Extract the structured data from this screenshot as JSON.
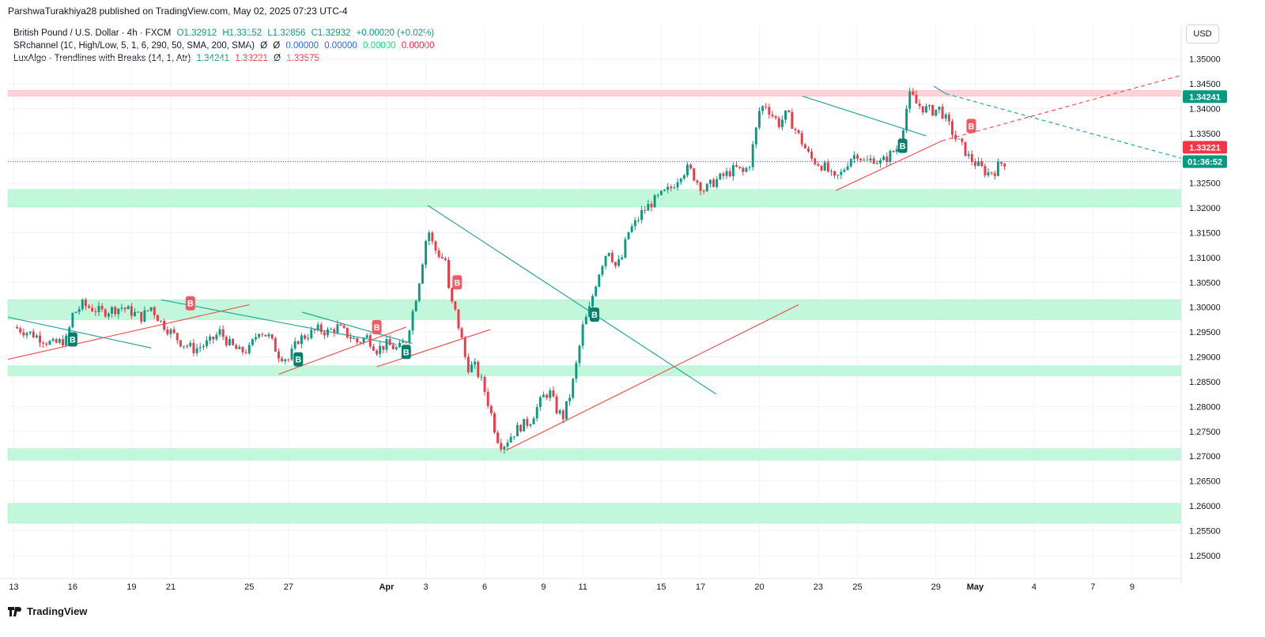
{
  "header": {
    "publisher_line": "ParshwaTurakhiya28 published on TradingView.com, May 02, 2025 07:23 UTC-4"
  },
  "legend": {
    "row1": {
      "name": "British Pound / U.S. Dollar · 4h · FXCM",
      "o": "O1.32912",
      "h": "H1.33152",
      "l": "L1.32856",
      "c": "C1.32932",
      "chg": "+0.00020 (+0.02%)"
    },
    "row2": {
      "name": "SRchannel (10, High/Low, 5, 1, 6, 290, 50, SMA, 200, SMA)",
      "s1": "Ø",
      "s2": "Ø",
      "v1": "0.00000",
      "v2": "0.00000",
      "v3": "0.00000",
      "v4": "0.00000"
    },
    "row3": {
      "name": "LuxAlgo - Trendlines with Breaks (14, 1, Atr)",
      "v1": "1.34241",
      "v2": "1.33221",
      "s1": "Ø",
      "v3": "1.33575"
    }
  },
  "currency_button": "USD",
  "price_tags": {
    "upper": "1.34241",
    "lower": "1.33221",
    "countdown": "01:36:52"
  },
  "footer": {
    "brand": "TradingView"
  },
  "colors": {
    "up": "#089981",
    "down": "#f23645",
    "zone_green": "#b9f6d6",
    "zone_red": "#ffcdd2",
    "trend_green": "#26a69a",
    "trend_red": "#ef5350"
  },
  "chart_data": {
    "type": "candlestick",
    "symbol": "GBPUSD",
    "timeframe": "4h",
    "y_ticks": [
      "1.25000",
      "1.25500",
      "1.26000",
      "1.26500",
      "1.27000",
      "1.27500",
      "1.28000",
      "1.28500",
      "1.29000",
      "1.29500",
      "1.30000",
      "1.30500",
      "1.31000",
      "1.31500",
      "1.32000",
      "1.32500",
      "1.33000",
      "1.33500",
      "1.34000",
      "1.34500",
      "1.35000"
    ],
    "ylim": [
      1.246,
      1.352
    ],
    "x_ticks": [
      "13",
      "16",
      "19",
      "21",
      "25",
      "27",
      "Apr",
      "3",
      "6",
      "9",
      "11",
      "15",
      "17",
      "20",
      "23",
      "25",
      "29",
      "May",
      "4",
      "7",
      "9"
    ],
    "x_tick_days": [
      -19,
      -16,
      -13,
      -11,
      -7,
      -5,
      0,
      2,
      5,
      8,
      10,
      14,
      16,
      19,
      22,
      24,
      28,
      30,
      33,
      36,
      38
    ],
    "xlim_days": [
      -19.3,
      40.5
    ],
    "zones": [
      {
        "low": 1.3425,
        "high": 1.3437,
        "kind": "resistance"
      },
      {
        "low": 1.3202,
        "high": 1.3237,
        "kind": "support"
      },
      {
        "low": 1.2975,
        "high": 1.3015,
        "kind": "support"
      },
      {
        "low": 1.2862,
        "high": 1.2882,
        "kind": "support"
      },
      {
        "low": 1.2692,
        "high": 1.2715,
        "kind": "support"
      },
      {
        "low": 1.2565,
        "high": 1.2605,
        "kind": "support"
      }
    ],
    "close_path": [
      [
        -19.0,
        1.296
      ],
      [
        -18.0,
        1.2945
      ],
      [
        -17.0,
        1.2925
      ],
      [
        -16.3,
        1.2935
      ],
      [
        -16.0,
        1.2985
      ],
      [
        -15.5,
        1.3005
      ],
      [
        -14.5,
        1.299
      ],
      [
        -13.5,
        1.3
      ],
      [
        -12.5,
        1.298
      ],
      [
        -12.0,
        1.3
      ],
      [
        -11.5,
        1.297
      ],
      [
        -11.0,
        1.295
      ],
      [
        -10.5,
        1.293
      ],
      [
        -9.8,
        1.2915
      ],
      [
        -9.0,
        1.293
      ],
      [
        -8.5,
        1.295
      ],
      [
        -8.0,
        1.2925
      ],
      [
        -7.5,
        1.291
      ],
      [
        -7.0,
        1.2915
      ],
      [
        -6.5,
        1.2955
      ],
      [
        -6.0,
        1.294
      ],
      [
        -5.5,
        1.2905
      ],
      [
        -5.0,
        1.2895
      ],
      [
        -4.5,
        1.2935
      ],
      [
        -4.0,
        1.2945
      ],
      [
        -3.5,
        1.2955
      ],
      [
        -3.0,
        1.295
      ],
      [
        -2.5,
        1.296
      ],
      [
        -2.0,
        1.2945
      ],
      [
        -1.5,
        1.293
      ],
      [
        -1.0,
        1.294
      ],
      [
        -0.5,
        1.2915
      ],
      [
        0.0,
        1.2925
      ],
      [
        0.6,
        1.2915
      ],
      [
        1.0,
        1.2935
      ],
      [
        1.3,
        1.2985
      ],
      [
        1.6,
        1.304
      ],
      [
        1.9,
        1.311
      ],
      [
        2.1,
        1.316
      ],
      [
        2.4,
        1.312
      ],
      [
        2.8,
        1.31
      ],
      [
        3.0,
        1.3095
      ],
      [
        3.2,
        1.302
      ],
      [
        3.5,
        1.299
      ],
      [
        3.8,
        1.294
      ],
      [
        4.1,
        1.288
      ],
      [
        4.5,
        1.288
      ],
      [
        4.9,
        1.2845
      ],
      [
        5.3,
        1.279
      ],
      [
        5.6,
        1.274
      ],
      [
        5.9,
        1.272
      ],
      [
        6.3,
        1.274
      ],
      [
        6.8,
        1.276
      ],
      [
        7.3,
        1.277
      ],
      [
        7.7,
        1.28
      ],
      [
        8.0,
        1.282
      ],
      [
        8.3,
        1.283
      ],
      [
        8.7,
        1.279
      ],
      [
        9.0,
        1.278
      ],
      [
        9.4,
        1.283
      ],
      [
        9.7,
        1.289
      ],
      [
        10.0,
        1.296
      ],
      [
        10.3,
        1.299
      ],
      [
        10.6,
        1.304
      ],
      [
        10.9,
        1.308
      ],
      [
        11.3,
        1.312
      ],
      [
        11.7,
        1.308
      ],
      [
        12.0,
        1.31
      ],
      [
        12.3,
        1.315
      ],
      [
        12.7,
        1.317
      ],
      [
        13.0,
        1.319
      ],
      [
        13.5,
        1.321
      ],
      [
        14.0,
        1.3225
      ],
      [
        14.5,
        1.324
      ],
      [
        15.0,
        1.327
      ],
      [
        15.4,
        1.328
      ],
      [
        15.8,
        1.3255
      ],
      [
        16.2,
        1.3235
      ],
      [
        16.6,
        1.325
      ],
      [
        17.0,
        1.326
      ],
      [
        17.4,
        1.327
      ],
      [
        17.8,
        1.328
      ],
      [
        18.2,
        1.327
      ],
      [
        18.5,
        1.329
      ],
      [
        18.8,
        1.335
      ],
      [
        19.0,
        1.3395
      ],
      [
        19.3,
        1.341
      ],
      [
        19.6,
        1.339
      ],
      [
        20.0,
        1.337
      ],
      [
        20.4,
        1.339
      ],
      [
        20.8,
        1.336
      ],
      [
        21.2,
        1.333
      ],
      [
        21.6,
        1.33
      ],
      [
        22.0,
        1.329
      ],
      [
        22.4,
        1.328
      ],
      [
        22.8,
        1.3255
      ],
      [
        23.2,
        1.327
      ],
      [
        23.6,
        1.33
      ],
      [
        24.0,
        1.331
      ],
      [
        24.4,
        1.329
      ],
      [
        24.8,
        1.33
      ],
      [
        25.2,
        1.329
      ],
      [
        25.6,
        1.3305
      ],
      [
        26.0,
        1.332
      ],
      [
        26.3,
        1.336
      ],
      [
        26.5,
        1.34
      ],
      [
        26.7,
        1.343
      ],
      [
        27.0,
        1.341
      ],
      [
        27.4,
        1.34
      ],
      [
        27.8,
        1.3395
      ],
      [
        28.2,
        1.34
      ],
      [
        28.6,
        1.337
      ],
      [
        29.0,
        1.334
      ],
      [
        29.4,
        1.332
      ],
      [
        29.7,
        1.33
      ],
      [
        30.0,
        1.329
      ],
      [
        30.3,
        1.328
      ],
      [
        30.6,
        1.327
      ],
      [
        31.0,
        1.3275
      ],
      [
        31.3,
        1.329
      ],
      [
        31.6,
        1.3293
      ]
    ],
    "signals": [
      {
        "day": -16.0,
        "price": 1.2935,
        "type": "buy",
        "label": "B"
      },
      {
        "day": -10.0,
        "price": 1.3008,
        "type": "sell",
        "label": "B"
      },
      {
        "day": -4.5,
        "price": 1.2895,
        "type": "buy",
        "label": "B"
      },
      {
        "day": -0.5,
        "price": 1.296,
        "type": "sell",
        "label": "B"
      },
      {
        "day": 1.0,
        "price": 1.291,
        "type": "buy",
        "label": "B"
      },
      {
        "day": 3.6,
        "price": 1.305,
        "type": "sell",
        "label": "B"
      },
      {
        "day": 10.6,
        "price": 1.2985,
        "type": "buy",
        "label": "B"
      },
      {
        "day": 26.3,
        "price": 1.3325,
        "type": "buy",
        "label": "B"
      },
      {
        "day": 29.8,
        "price": 1.3365,
        "type": "sell",
        "label": "B"
      }
    ],
    "trendlines": [
      {
        "color": "green",
        "dashed": false,
        "from": [
          -19.3,
          1.298
        ],
        "to": [
          -12.0,
          1.2918
        ]
      },
      {
        "color": "red",
        "dashed": false,
        "from": [
          -19.3,
          1.2895
        ],
        "to": [
          -7.0,
          1.3005
        ]
      },
      {
        "color": "green",
        "dashed": false,
        "from": [
          -11.5,
          1.3015
        ],
        "to": [
          0.5,
          1.2925
        ]
      },
      {
        "color": "red",
        "dashed": false,
        "from": [
          -5.5,
          1.2865
        ],
        "to": [
          1.0,
          1.296
        ]
      },
      {
        "color": "green",
        "dashed": false,
        "from": [
          -4.3,
          1.299
        ],
        "to": [
          1.3,
          1.2927
        ]
      },
      {
        "color": "red",
        "dashed": false,
        "from": [
          -0.5,
          1.288
        ],
        "to": [
          5.3,
          1.2955
        ]
      },
      {
        "color": "green",
        "dashed": false,
        "from": [
          2.1,
          1.3205
        ],
        "to": [
          16.8,
          1.2825
        ]
      },
      {
        "color": "red",
        "dashed": false,
        "from": [
          6.1,
          1.2712
        ],
        "to": [
          21.0,
          1.3005
        ]
      },
      {
        "color": "green",
        "dashed": false,
        "from": [
          21.2,
          1.3425
        ],
        "to": [
          27.5,
          1.3345
        ]
      },
      {
        "color": "red",
        "dashed": false,
        "from": [
          22.9,
          1.3235
        ],
        "to": [
          28.3,
          1.3335
        ]
      },
      {
        "color": "red",
        "dashed": true,
        "from": [
          28.3,
          1.3335
        ],
        "to": [
          40.5,
          1.3467
        ]
      },
      {
        "color": "green",
        "dashed": false,
        "from": [
          27.9,
          1.3445
        ],
        "to": [
          28.5,
          1.343
        ]
      },
      {
        "color": "green",
        "dashed": true,
        "from": [
          28.5,
          1.343
        ],
        "to": [
          40.5,
          1.33
        ]
      }
    ],
    "last_price": 1.32932
  }
}
